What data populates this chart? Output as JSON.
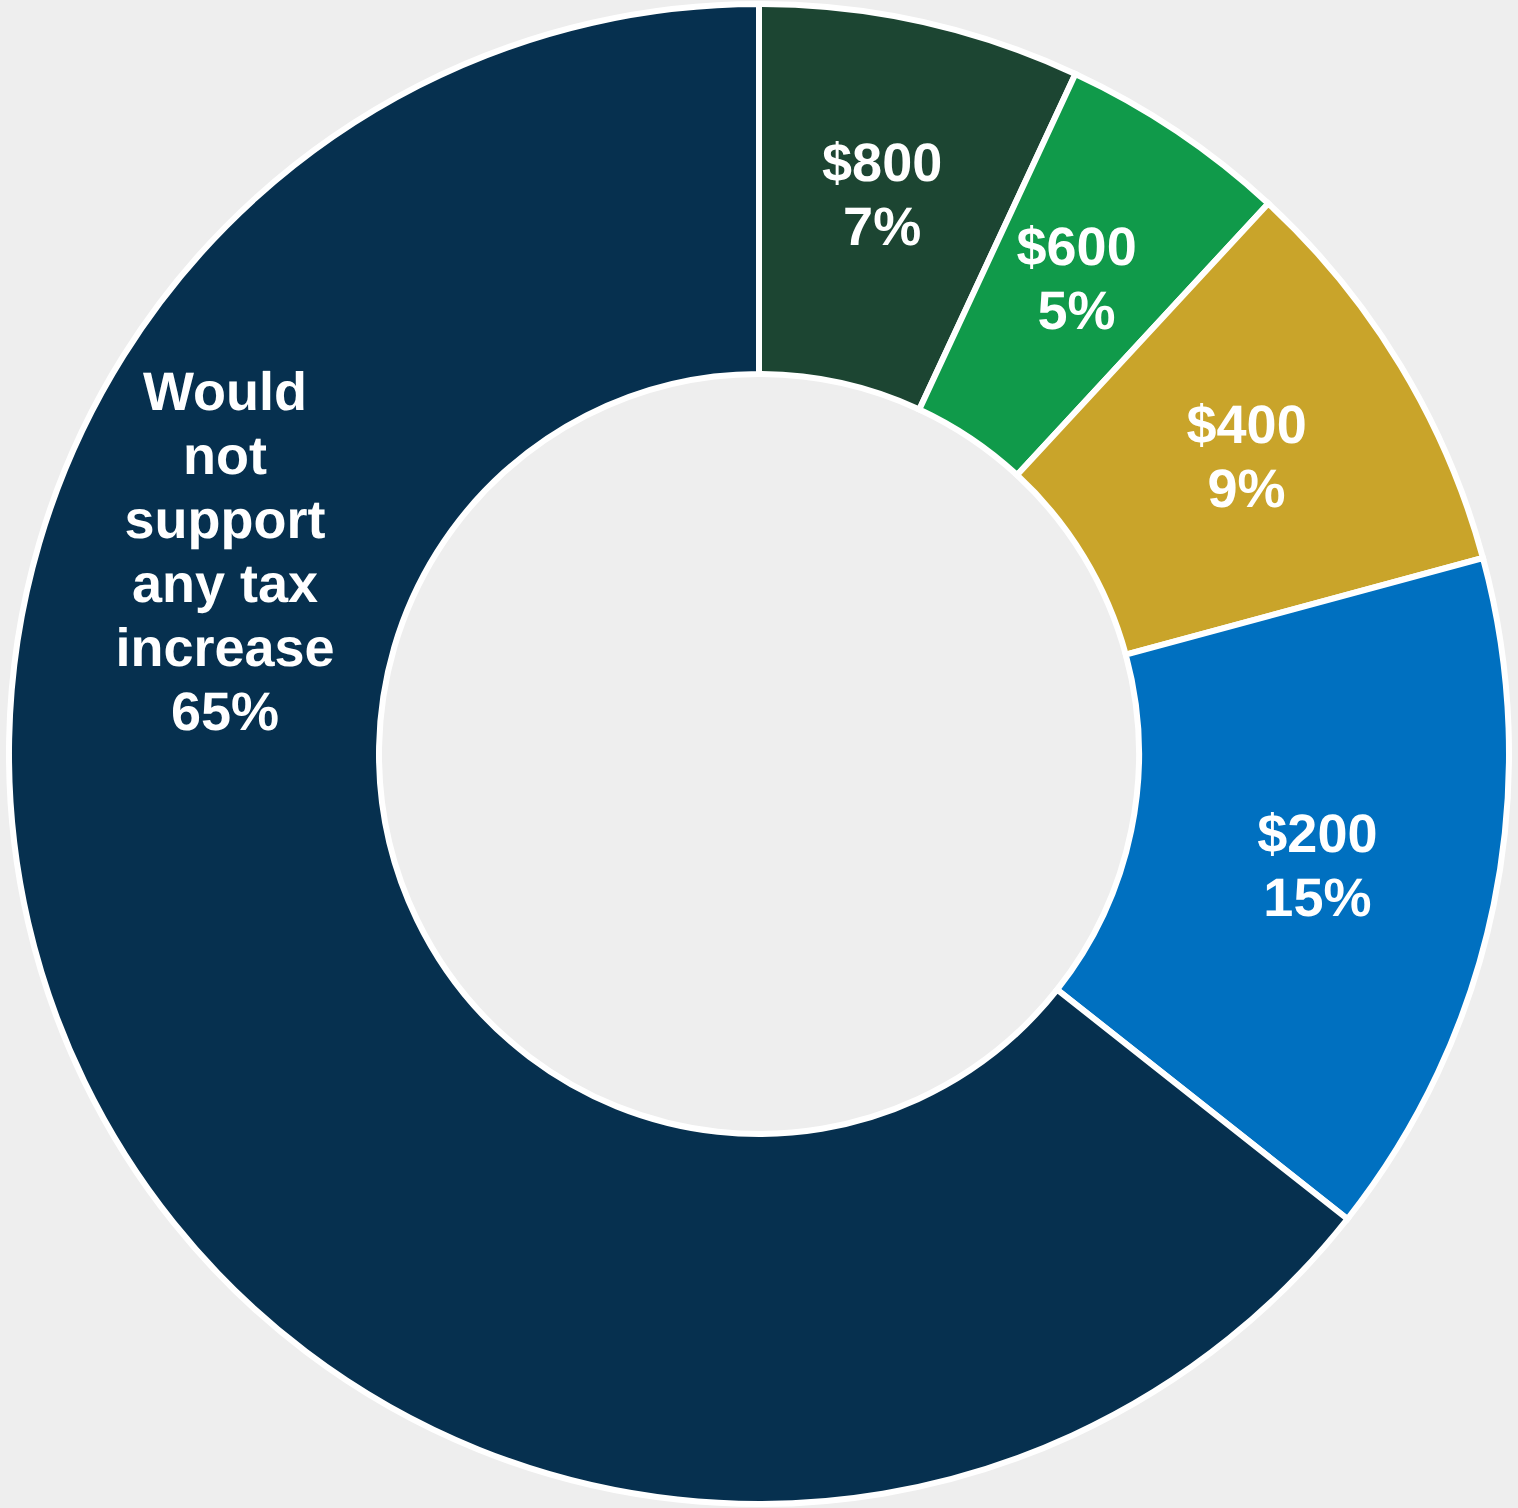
{
  "chart_data": {
    "type": "donut",
    "categories": [
      "$800",
      "$600",
      "$400",
      "$200",
      "Would not support any tax increase"
    ],
    "values": [
      7,
      5,
      9,
      15,
      65
    ],
    "value_labels": [
      "7%",
      "5%",
      "9%",
      "15%",
      "65%"
    ],
    "colors": [
      "#1c4532",
      "#109a4a",
      "#c9a42a",
      "#0070c0",
      "#06304f"
    ]
  }
}
